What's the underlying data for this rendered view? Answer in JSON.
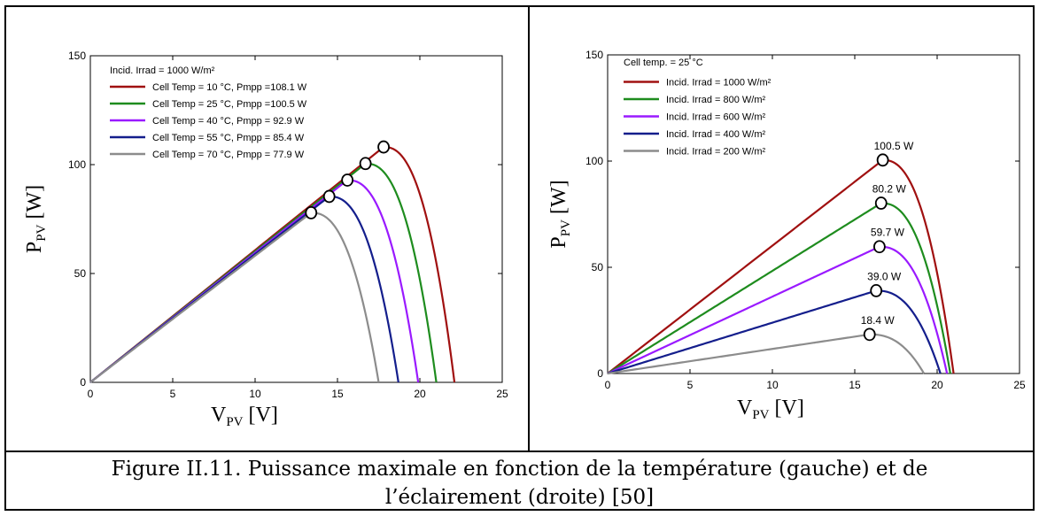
{
  "caption": {
    "line1": "Figure II.11. Puissance maximale en fonction de la température (gauche) et de",
    "line2": "l’éclairement (droite) [50]"
  },
  "chart_data": [
    {
      "type": "line",
      "xlabel_main": "V",
      "xlabel_sub": "PV",
      "xlabel_unit": " [V]",
      "ylabel_main": "P",
      "ylabel_sub": "PV",
      "ylabel_unit": " [W]",
      "xlim": [
        0,
        25
      ],
      "ylim": [
        0,
        150
      ],
      "xticks": [
        "0",
        "5",
        "10",
        "15",
        "20",
        "25"
      ],
      "yticks": [
        "0",
        "50",
        "100",
        "150"
      ],
      "legend_title": "Incid. Irrad = 1000 W/m²",
      "legend_position": "top-left",
      "series": [
        {
          "name": "Cell Temp =  10 °C,  Pmpp =108.1 W",
          "color": "#a01010",
          "vmpp": 17.8,
          "pmpp": 108.1,
          "voc": 22.1
        },
        {
          "name": "Cell Temp =  25 °C,  Pmpp =100.5 W",
          "color": "#1e8c1e",
          "vmpp": 16.7,
          "pmpp": 100.5,
          "voc": 21.0
        },
        {
          "name": "Cell Temp =  40 °C,  Pmpp = 92.9 W",
          "color": "#9a1aff",
          "vmpp": 15.6,
          "pmpp": 92.9,
          "voc": 19.9
        },
        {
          "name": "Cell Temp =  55 °C,  Pmpp = 85.4 W",
          "color": "#141e8c",
          "vmpp": 14.5,
          "pmpp": 85.4,
          "voc": 18.7
        },
        {
          "name": "Cell Temp =  70 °C,  Pmpp = 77.9 W",
          "color": "#8c8c8c",
          "vmpp": 13.4,
          "pmpp": 77.9,
          "voc": 17.5
        }
      ]
    },
    {
      "type": "line",
      "xlabel_main": "V",
      "xlabel_sub": "PV",
      "xlabel_unit": " [V]",
      "ylabel_main": "P",
      "ylabel_sub": "PV",
      "ylabel_unit": " [W]",
      "xlim": [
        0,
        25
      ],
      "ylim": [
        0,
        150
      ],
      "xticks": [
        "0",
        "5",
        "10",
        "15",
        "20",
        "25"
      ],
      "yticks": [
        "0",
        "50",
        "100",
        "150"
      ],
      "legend_title": "Cell temp. =   25 °C",
      "legend_position": "top-left",
      "series": [
        {
          "name": "Incid. Irrad = 1000 W/m²",
          "color": "#a01010",
          "vmpp": 16.7,
          "pmpp": 100.5,
          "voc": 21.0,
          "label": "100.5 W"
        },
        {
          "name": "Incid. Irrad =  800 W/m²",
          "color": "#1e8c1e",
          "vmpp": 16.6,
          "pmpp": 80.2,
          "voc": 20.8,
          "label": "80.2 W"
        },
        {
          "name": "Incid. Irrad =  600 W/m²",
          "color": "#9a1aff",
          "vmpp": 16.5,
          "pmpp": 59.7,
          "voc": 20.6,
          "label": "59.7 W"
        },
        {
          "name": "Incid. Irrad =  400 W/m²",
          "color": "#141e8c",
          "vmpp": 16.3,
          "pmpp": 39.0,
          "voc": 20.2,
          "label": "39.0 W"
        },
        {
          "name": "Incid. Irrad =  200 W/m²",
          "color": "#8c8c8c",
          "vmpp": 15.9,
          "pmpp": 18.4,
          "voc": 19.2,
          "label": "18.4 W"
        }
      ]
    }
  ]
}
